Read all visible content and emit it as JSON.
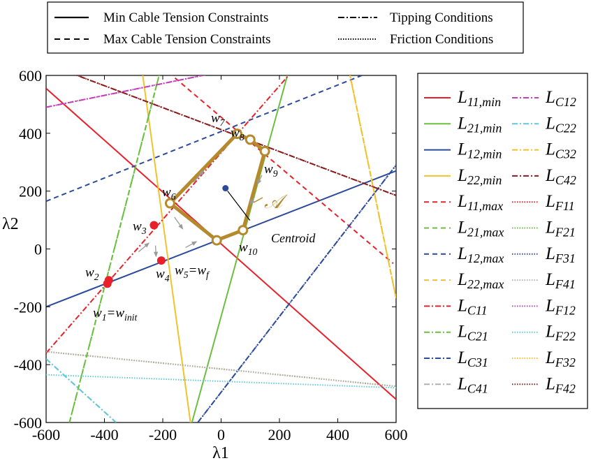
{
  "chart_data": {
    "type": "line",
    "xlabel": "λ1",
    "ylabel": "λ2",
    "xlim": [
      -600,
      600
    ],
    "ylim": [
      -600,
      600
    ],
    "xticks": [
      "-600",
      "-400",
      "-200",
      "0",
      "200",
      "400",
      "600"
    ],
    "yticks": [
      "600",
      "400",
      "200",
      "0",
      "-200",
      "-400",
      "-600"
    ],
    "grid": false,
    "top_legend": [
      {
        "label": "Min Cable Tension Constraints",
        "style": "solid"
      },
      {
        "label": "Max Cable Tension Constraints",
        "style": "dashed"
      },
      {
        "label": "Tipping Conditions",
        "style": "dashdot"
      },
      {
        "label": "Friction Conditions",
        "style": "dotted"
      }
    ],
    "series": [
      {
        "name": "L11,min",
        "main": "L",
        "sub": "11,min",
        "color": "#e8202a",
        "style": "solid",
        "points": [
          [
            -600,
            555
          ],
          [
            600,
            -520
          ]
        ]
      },
      {
        "name": "L21,min",
        "main": "L",
        "sub": "21,min",
        "color": "#6bbf3f",
        "style": "solid",
        "points": [
          [
            -100,
            -600
          ],
          [
            230,
            610
          ]
        ]
      },
      {
        "name": "L12,min",
        "main": "L",
        "sub": "12,min",
        "color": "#2a4a9c",
        "style": "solid",
        "points": [
          [
            -600,
            -200
          ],
          [
            600,
            270
          ]
        ]
      },
      {
        "name": "L22,min",
        "main": "L",
        "sub": "22,min",
        "color": "#f1c22e",
        "style": "solid",
        "points": [
          [
            -270,
            610
          ],
          [
            -105,
            -600
          ]
        ]
      },
      {
        "name": "L11,max",
        "main": "L",
        "sub": "11,max",
        "color": "#e8202a",
        "style": "dashed",
        "points": [
          [
            -180,
            610
          ],
          [
            590,
            -50
          ]
        ]
      },
      {
        "name": "L21,max",
        "main": "L",
        "sub": "21,max",
        "color": "#6bbf3f",
        "style": "dashed",
        "points": [
          [
            -520,
            -600
          ],
          [
            -210,
            610
          ]
        ]
      },
      {
        "name": "L12,max",
        "main": "L",
        "sub": "12,max",
        "color": "#2a4a9c",
        "style": "dashed",
        "points": [
          [
            -600,
            165
          ],
          [
            520,
            615
          ]
        ]
      },
      {
        "name": "L22,max",
        "main": "L",
        "sub": "22,max",
        "color": "#f1c22e",
        "style": "dashed",
        "points": [
          [
            440,
            610
          ],
          [
            600,
            -170
          ]
        ]
      },
      {
        "name": "LC11",
        "main": "L",
        "sub": "C11",
        "color": "#e8202a",
        "style": "dashdot",
        "points": [
          [
            -600,
            -360
          ],
          [
            240,
            610
          ]
        ]
      },
      {
        "name": "LC21",
        "main": "L",
        "sub": "C21",
        "color": "#6bbf3f",
        "style": "dashdot",
        "points": [
          [
            -520,
            -600
          ],
          [
            -210,
            610
          ]
        ]
      },
      {
        "name": "LC31",
        "main": "L",
        "sub": "C31",
        "color": "#2a4a9c",
        "style": "dashdot",
        "points": [
          [
            -80,
            -600
          ],
          [
            600,
            290
          ]
        ]
      },
      {
        "name": "LC41",
        "main": "L",
        "sub": "C41",
        "color": "#b0b0b0",
        "style": "dashdot",
        "points": [
          [
            -600,
            -380
          ],
          [
            -360,
            -600
          ]
        ]
      },
      {
        "name": "LC12",
        "main": "L",
        "sub": "C12",
        "color": "#c33fb8",
        "style": "dashdot",
        "points": [
          [
            -600,
            490
          ],
          [
            10,
            615
          ]
        ]
      },
      {
        "name": "LC22",
        "main": "L",
        "sub": "C22",
        "color": "#5ec9d9",
        "style": "dashdot",
        "points": [
          [
            -600,
            -380
          ],
          [
            -360,
            -600
          ]
        ]
      },
      {
        "name": "LC32",
        "main": "L",
        "sub": "C32",
        "color": "#f1c22e",
        "style": "dashdot",
        "points": [
          [
            440,
            610
          ],
          [
            600,
            -170
          ]
        ]
      },
      {
        "name": "LC42",
        "main": "L",
        "sub": "C42",
        "color": "#8b1a1a",
        "style": "dashdot",
        "points": [
          [
            -520,
            610
          ],
          [
            600,
            185
          ]
        ]
      },
      {
        "name": "LF11",
        "main": "L",
        "sub": "F11",
        "color": "#e8202a",
        "style": "dotted",
        "points": [
          [
            -600,
            -355
          ],
          [
            600,
            -475
          ]
        ]
      },
      {
        "name": "LF21",
        "main": "L",
        "sub": "F21",
        "color": "#6bbf3f",
        "style": "dotted",
        "points": [
          [
            -600,
            -355
          ],
          [
            600,
            -475
          ]
        ]
      },
      {
        "name": "LF31",
        "main": "L",
        "sub": "F31",
        "color": "#2a4a9c",
        "style": "dotted",
        "points": [
          [
            -80,
            -600
          ],
          [
            600,
            290
          ]
        ]
      },
      {
        "name": "LF41",
        "main": "L",
        "sub": "F41",
        "color": "#b0b0b0",
        "style": "dotted",
        "points": [
          [
            -600,
            -355
          ],
          [
            600,
            -475
          ]
        ]
      },
      {
        "name": "LF12",
        "main": "L",
        "sub": "F12",
        "color": "#c33fb8",
        "style": "dotted",
        "points": [
          [
            -600,
            490
          ],
          [
            10,
            615
          ]
        ]
      },
      {
        "name": "LF22",
        "main": "L",
        "sub": "F22",
        "color": "#5ec9d9",
        "style": "dotted",
        "points": [
          [
            -600,
            -435
          ],
          [
            600,
            -480
          ]
        ]
      },
      {
        "name": "LF32",
        "main": "L",
        "sub": "F32",
        "color": "#f1c22e",
        "style": "dotted",
        "points": [
          [
            440,
            610
          ],
          [
            600,
            -170
          ]
        ]
      },
      {
        "name": "LF42",
        "main": "L",
        "sub": "F42",
        "color": "#8b1a1a",
        "style": "dotted",
        "points": [
          [
            -520,
            610
          ],
          [
            600,
            185
          ]
        ]
      }
    ],
    "path_points": [
      {
        "x": -390,
        "y": -120,
        "label": "w1=winit",
        "main": "w",
        "sub": "1",
        "eq": "=",
        "main2": "w",
        "sub2": "init"
      },
      {
        "x": -385,
        "y": -108,
        "label": "w2",
        "main": "w",
        "sub": "2"
      },
      {
        "x": -230,
        "y": 82,
        "label": "w3",
        "main": "w",
        "sub": "3"
      },
      {
        "x": -205,
        "y": -40,
        "label": "w4",
        "main": "w",
        "sub": "4"
      }
    ],
    "polygon": {
      "color": "#b48a2c",
      "label": "𝒜",
      "points": [
        {
          "x": -15,
          "y": 30,
          "main": "w",
          "sub": "5",
          "eq": "=",
          "main2": "w",
          "sub2": "f"
        },
        {
          "x": -175,
          "y": 158,
          "main": "w",
          "sub": "6"
        },
        {
          "x": 55,
          "y": 398,
          "main": "w",
          "sub": "7"
        },
        {
          "x": 100,
          "y": 378,
          "main": "w",
          "sub": "8"
        },
        {
          "x": 150,
          "y": 338,
          "main": "w",
          "sub": "9"
        },
        {
          "x": 75,
          "y": 65,
          "main": "w",
          "sub": "10"
        }
      ]
    },
    "centroid": {
      "x": 15,
      "y": 210,
      "label": "Centroid"
    }
  }
}
